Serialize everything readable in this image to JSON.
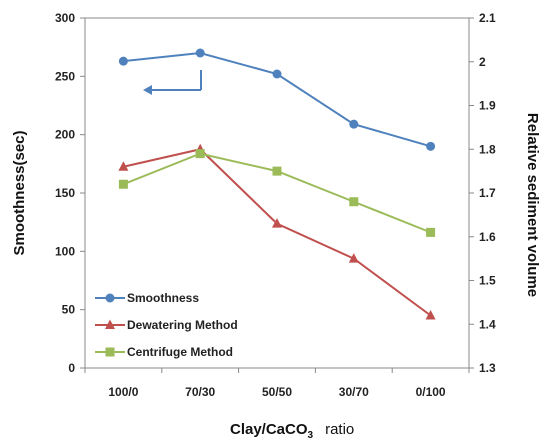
{
  "chart_data": {
    "type": "line",
    "categories": [
      "100/0",
      "70/30",
      "50/50",
      "30/70",
      "0/100"
    ],
    "xlabel_main": "Clay/CaCO",
    "xlabel_sub": "3",
    "xlabel_suffix": "ratio",
    "ylabel_left": "Smoothness(sec)",
    "ylabel_right": "Relative sediment volume",
    "ylim_left": [
      0,
      300
    ],
    "yticks_left": [
      "0",
      "50",
      "100",
      "150",
      "200",
      "250",
      "300"
    ],
    "ylim_right": [
      1.3,
      2.1
    ],
    "yticks_right": [
      "1.3",
      "1.4",
      "1.5",
      "1.6",
      "1.7",
      "1.8",
      "1.9",
      "2",
      "2.1"
    ],
    "legend_position": "bottom-left",
    "grid": false,
    "series": [
      {
        "name": "Smoothness",
        "axis": "left",
        "color": "#4f81bd",
        "marker": "circle",
        "values": [
          263,
          270,
          252,
          209,
          190
        ]
      },
      {
        "name": "Dewatering Method",
        "axis": "right",
        "color": "#c0504d",
        "marker": "triangle",
        "values": [
          1.76,
          1.8,
          1.63,
          1.55,
          1.42
        ]
      },
      {
        "name": "Centrifuge Method",
        "axis": "right",
        "color": "#9bbb59",
        "marker": "square",
        "values": [
          1.72,
          1.79,
          1.75,
          1.68,
          1.61
        ]
      }
    ]
  }
}
